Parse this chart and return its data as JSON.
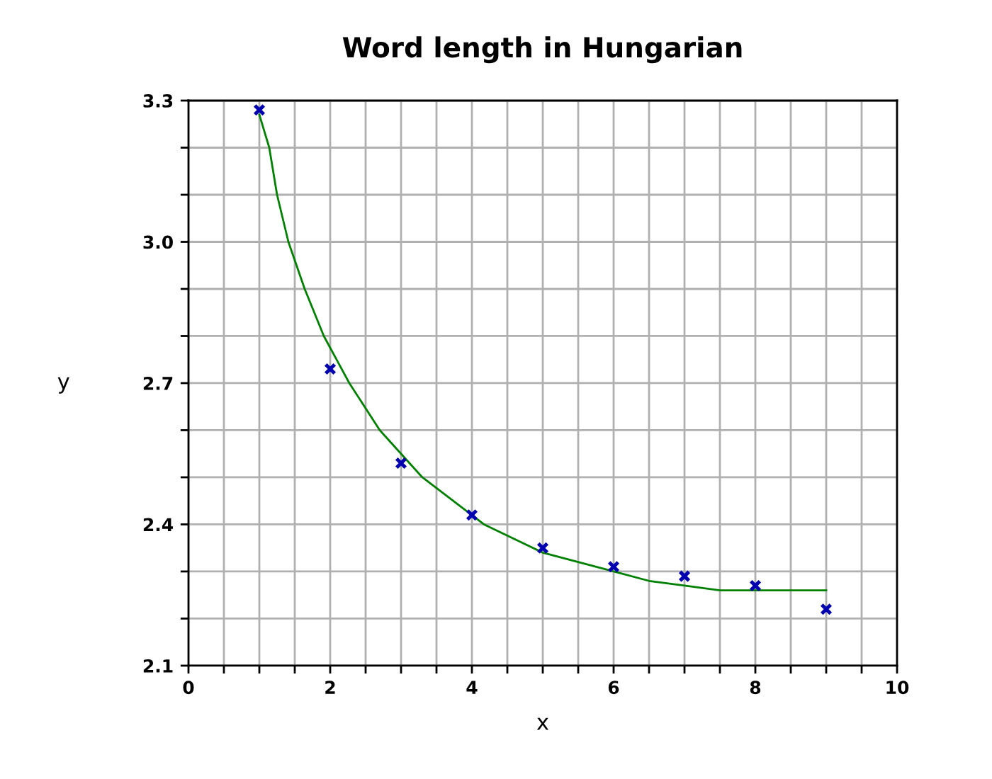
{
  "chart_data": {
    "type": "scatter",
    "title": "Word length in Hungarian",
    "xlabel": "x",
    "ylabel": "y",
    "xlim": [
      0,
      10
    ],
    "xticks": [
      0,
      {
        "value": 0.5,
        "label": null
      },
      {
        "value": 1,
        "label": null
      },
      {
        "value": 1.5,
        "label": null
      },
      2,
      {
        "value": 2.5,
        "label": null
      },
      {
        "value": 3,
        "label": null
      },
      {
        "value": 3.5,
        "label": null
      },
      4,
      {
        "value": 4.5,
        "label": null
      },
      {
        "value": 5,
        "label": null
      },
      {
        "value": 5.5,
        "label": null
      },
      6,
      {
        "value": 6.5,
        "label": null
      },
      {
        "value": 7,
        "label": null
      },
      {
        "value": 7.5,
        "label": null
      },
      8,
      {
        "value": 8.5,
        "label": null
      },
      {
        "value": 9,
        "label": null
      },
      {
        "value": 9.5,
        "label": null
      },
      10
    ],
    "ylim": [
      2.1,
      3.3
    ],
    "yticks": [
      2.1,
      {
        "value": 2.2,
        "label": null
      },
      {
        "value": 2.3,
        "label": null
      },
      2.4,
      {
        "value": 2.5,
        "label": null
      },
      {
        "value": 2.6,
        "label": null
      },
      2.7,
      {
        "value": 2.8,
        "label": null
      },
      {
        "value": 2.9,
        "label": null
      },
      {
        "value": 3,
        "label": "3.0"
      },
      {
        "value": 3.1,
        "label": null
      },
      {
        "value": 3.2,
        "label": null
      },
      3.3
    ],
    "grid": true,
    "marker": "cross",
    "series": [
      {
        "type": "line",
        "color": "#008000",
        "line_style": "solid",
        "marker": "none",
        "x": [
          1,
          1.14,
          1.25,
          1.41,
          1.64,
          1.91,
          2.27,
          2.7,
          3.3,
          4.17,
          5,
          5.5,
          6,
          6.5,
          7,
          7.5,
          8,
          8.5,
          9
        ],
        "values": [
          3.27,
          3.2,
          3.1,
          3.0,
          2.9,
          2.8,
          2.7,
          2.6,
          2.5,
          2.4,
          2.34,
          2.32,
          2.3,
          2.28,
          2.27,
          2.26,
          2.26,
          2.26,
          2.26
        ]
      },
      {
        "color": "#0000b0",
        "x": [
          1,
          2,
          3,
          4,
          5,
          6,
          7,
          8,
          9
        ],
        "values": [
          3.28,
          2.73,
          2.53,
          2.42,
          2.35,
          2.31,
          2.29,
          2.27,
          2.22
        ]
      }
    ]
  }
}
